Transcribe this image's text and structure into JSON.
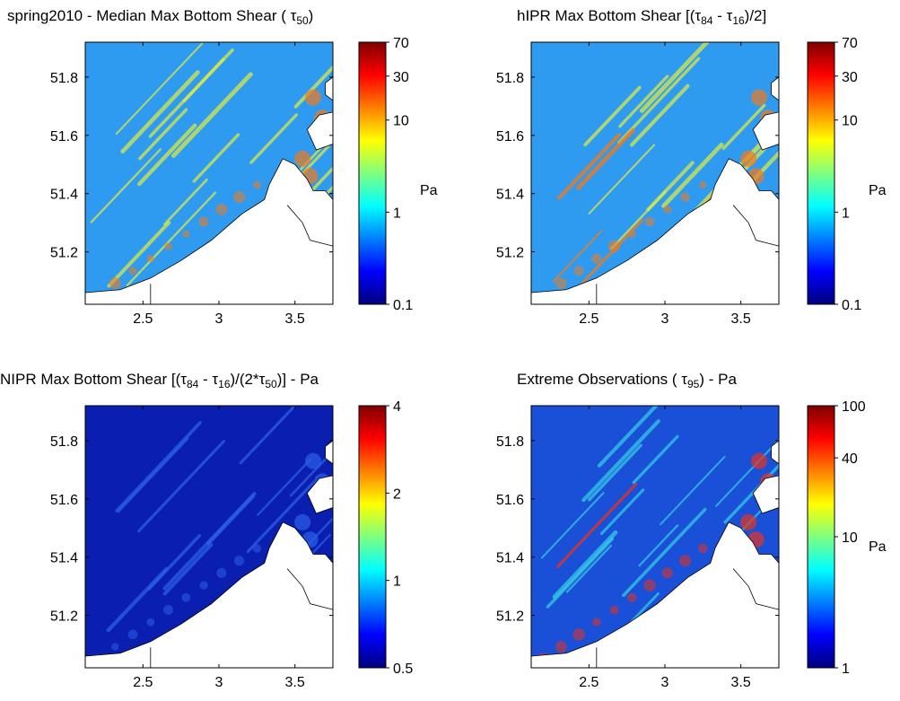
{
  "figure_title": "",
  "chart_data": [
    {
      "type": "heatmap",
      "title_parts": [
        [
          "spring2010 - Median Max Bottom Shear ( τ",
          "t"
        ],
        [
          "50",
          "s"
        ],
        [
          ")",
          "t"
        ]
      ],
      "xlim": [
        2.12,
        3.75
      ],
      "ylim": [
        51.02,
        51.92
      ],
      "xticks": [
        2.5,
        3,
        3.5
      ],
      "yticks": [
        51.2,
        51.4,
        51.6,
        51.8
      ],
      "colorbar": {
        "scale": "log",
        "ticks": [
          "0.1",
          "1",
          "10",
          "30",
          "70"
        ],
        "tick_values": [
          0.1,
          1,
          10,
          30,
          70
        ],
        "range": [
          0.1,
          70
        ],
        "unit": "Pa"
      },
      "colormap": "jet",
      "base_color": "#2f9bf0",
      "ridge_color": "#d8e84a",
      "hot_color": "#f07a1c",
      "ridge_count": 22
    },
    {
      "type": "heatmap",
      "title_parts": [
        [
          "hIPR Max Bottom Shear [(τ",
          "t"
        ],
        [
          "84",
          "s"
        ],
        [
          " - τ",
          "t"
        ],
        [
          "16",
          "s"
        ],
        [
          ")/2]",
          "t"
        ]
      ],
      "xlim": [
        2.12,
        3.75
      ],
      "ylim": [
        51.02,
        51.92
      ],
      "xticks": [
        2.5,
        3,
        3.5
      ],
      "yticks": [
        51.2,
        51.4,
        51.6,
        51.8
      ],
      "colorbar": {
        "scale": "log",
        "ticks": [
          "0.1",
          "1",
          "10",
          "30",
          "70"
        ],
        "tick_values": [
          0.1,
          1,
          10,
          30,
          70
        ],
        "range": [
          0.1,
          70
        ],
        "unit": "Pa"
      },
      "colormap": "jet",
      "base_color": "#2f9bf0",
      "ridge_color": "#d8e84a",
      "hot_color": "#f07a1c",
      "ridge_count": 22
    },
    {
      "type": "heatmap",
      "title_parts": [
        [
          "NIPR Max Bottom Shear [(τ",
          "t"
        ],
        [
          "84",
          "s"
        ],
        [
          " - τ",
          "t"
        ],
        [
          "16",
          "s"
        ],
        [
          ")/(2*τ",
          "t"
        ],
        [
          "50",
          "s"
        ],
        [
          ")] - Pa",
          "t"
        ]
      ],
      "xlim": [
        2.12,
        3.75
      ],
      "ylim": [
        51.02,
        51.92
      ],
      "xticks": [
        2.5,
        3,
        3.5
      ],
      "yticks": [
        51.2,
        51.4,
        51.6,
        51.8
      ],
      "colorbar": {
        "scale": "log",
        "ticks": [
          "0.5",
          "1",
          "2",
          "4"
        ],
        "tick_values": [
          0.5,
          1,
          2,
          4
        ],
        "range": [
          0.5,
          4
        ],
        "unit": ""
      },
      "colormap": "jet",
      "base_color": "#0a1fb0",
      "ridge_color": "#2a5fe8",
      "hot_color": "#2a5fe8",
      "ridge_count": 14
    },
    {
      "type": "heatmap",
      "title_parts": [
        [
          "Extreme Observations ( τ",
          "t"
        ],
        [
          "95",
          "s"
        ],
        [
          ") - Pa",
          "t"
        ]
      ],
      "xlim": [
        2.12,
        3.75
      ],
      "ylim": [
        51.02,
        51.92
      ],
      "xticks": [
        2.5,
        3,
        3.5
      ],
      "yticks": [
        51.2,
        51.4,
        51.6,
        51.8
      ],
      "colorbar": {
        "scale": "log",
        "ticks": [
          "1",
          "10",
          "40",
          "100"
        ],
        "tick_values": [
          1,
          10,
          40,
          100
        ],
        "range": [
          1,
          100
        ],
        "unit": "Pa"
      },
      "colormap": "jet",
      "base_color": "#1a50d8",
      "ridge_color": "#34c8e6",
      "hot_color": "#e8321c",
      "ridge_count": 20
    }
  ]
}
